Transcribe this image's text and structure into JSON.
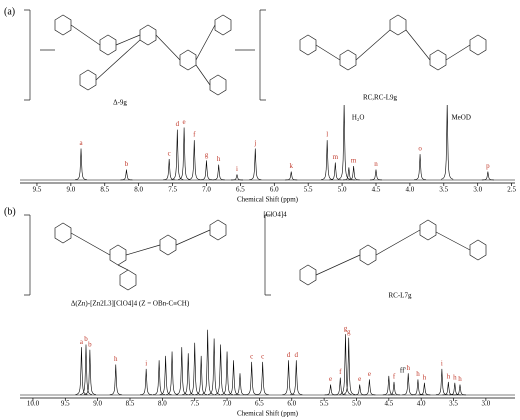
{
  "chart_data": [
    {
      "type": "spectrum",
      "panel": "(a)",
      "annotations": [
        "Δ-9g",
        "RC,RC-L9g"
      ],
      "xlabel": "Chemical Shift (ppm)",
      "xlim": [
        9.75,
        2.45
      ],
      "ylim": [
        0,
        100
      ],
      "color": "#000000",
      "xticks": [
        9.5,
        {
          "value": 9,
          "label": "9.0"
        },
        8.5,
        {
          "value": 8,
          "label": "8.0"
        },
        7.5,
        {
          "value": 7,
          "label": "7.0"
        },
        6.5,
        {
          "value": 6,
          "label": "6.0"
        },
        5.5,
        {
          "value": 5,
          "label": "5.0"
        },
        4.5,
        {
          "value": 4,
          "label": "4.0"
        },
        3.5,
        {
          "value": 3,
          "label": "3.0"
        },
        2.5
      ],
      "x": [
        8.85,
        8.18,
        7.55,
        7.43,
        7.33,
        7.18,
        7.0,
        6.82,
        6.55,
        6.28,
        5.75,
        5.22,
        5.1,
        4.97,
        4.9,
        4.83,
        4.5,
        3.85,
        3.45,
        2.85
      ],
      "values": [
        45,
        15,
        30,
        72,
        75,
        57,
        28,
        22,
        8,
        45,
        12,
        57,
        25,
        110,
        18,
        20,
        15,
        37,
        110,
        12
      ],
      "labels": [
        "a",
        "b",
        "c",
        "d",
        "e",
        "f",
        "g",
        "h",
        "i",
        "j",
        "k",
        "l",
        "m",
        "H₂O",
        null,
        "m",
        "n",
        "o",
        "MeOD",
        "p"
      ]
    },
    {
      "type": "spectrum",
      "panel": "(b)",
      "annotations": [
        "Δ(Zn)-[Zn2L3][ClO4]4 (Z = OBn-C≡CH)",
        "RC-L7g",
        "[ClO4]4"
      ],
      "xlabel": "Chemical Shift (ppm)",
      "xlim": [
        10.2,
        2.55
      ],
      "ylim": [
        0,
        100
      ],
      "color": "#000000",
      "xticks": [
        {
          "value": 10,
          "label": "10.0"
        },
        9.5,
        {
          "value": 9,
          "label": "9.0"
        },
        8.5,
        {
          "value": 8,
          "label": "8.0"
        },
        7.5,
        {
          "value": 7,
          "label": "7.0"
        },
        6.5,
        {
          "value": 6,
          "label": "6.0"
        },
        5.5,
        {
          "value": 5,
          "label": "5.0"
        },
        4.5,
        {
          "value": 4,
          "label": "4.0"
        },
        3.5,
        {
          "value": 3,
          "label": "3.0"
        }
      ],
      "x": [
        9.25,
        9.18,
        9.12,
        8.72,
        8.25,
        8.05,
        7.95,
        7.85,
        7.7,
        7.6,
        7.5,
        7.4,
        7.3,
        7.2,
        7.1,
        7.0,
        6.9,
        6.8,
        6.62,
        6.45,
        6.05,
        5.93,
        5.4,
        5.25,
        5.17,
        5.12,
        4.95,
        4.8,
        4.5,
        4.42,
        4.2,
        4.05,
        3.95,
        3.68,
        3.58,
        3.48,
        3.4
      ],
      "values": [
        55,
        58,
        52,
        35,
        30,
        40,
        45,
        50,
        55,
        48,
        60,
        45,
        75,
        65,
        58,
        50,
        40,
        25,
        38,
        38,
        40,
        40,
        12,
        20,
        70,
        66,
        12,
        18,
        22,
        15,
        25,
        18,
        14,
        30,
        15,
        14,
        12
      ],
      "labels": [
        "a",
        "b",
        "b",
        "h",
        "i",
        null,
        null,
        null,
        null,
        null,
        null,
        null,
        null,
        null,
        null,
        null,
        null,
        null,
        "c",
        "c",
        "d",
        "d",
        "e",
        "f",
        "g",
        "g",
        "e",
        "e",
        "ff'",
        "f",
        "h",
        "h",
        "h",
        "i",
        "h",
        "h",
        "h"
      ]
    }
  ]
}
